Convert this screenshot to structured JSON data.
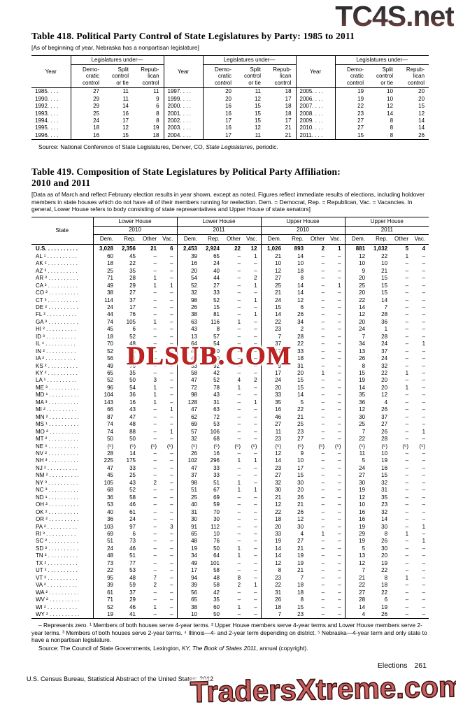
{
  "watermarks": {
    "top_right": "TC4S.net",
    "middle": "DLSUB.COM",
    "bottom_right": "TradersXtreme.com"
  },
  "table418": {
    "title": "Table 418. Political Party Control of State Legislatures by Party: 1985 to 2011",
    "note": "[As of beginning of year. Nebraska has a nonpartisan legislature]",
    "labels": {
      "year": "Year",
      "span": "Legislatures under—",
      "dem": "Demo-\ncratic\ncontrol",
      "split": "Split\ncontrol\nor tie",
      "rep": "Repub-\nlican\ncontrol"
    },
    "leader": ". . . .",
    "rows": [
      [
        "1985",
        "27",
        "11",
        "11",
        "1997",
        "20",
        "11",
        "18",
        "2005",
        "19",
        "10",
        "20"
      ],
      [
        "1990",
        "29",
        "11",
        "9",
        "1999",
        "20",
        "12",
        "17",
        "2006",
        "19",
        "10",
        "20"
      ],
      [
        "1992",
        "29",
        "14",
        "6",
        "2000",
        "16",
        "15",
        "18",
        "2007",
        "22",
        "12",
        "15"
      ],
      [
        "1993",
        "25",
        "16",
        "8",
        "2001",
        "16",
        "15",
        "18",
        "2008",
        "23",
        "14",
        "12"
      ],
      [
        "1994",
        "24",
        "17",
        "8",
        "2002",
        "17",
        "15",
        "17",
        "2009",
        "27",
        "8",
        "14"
      ],
      [
        "1995",
        "18",
        "12",
        "19",
        "2003",
        "16",
        "12",
        "21",
        "2010",
        "27",
        "8",
        "14"
      ],
      [
        "1996",
        "16",
        "15",
        "18",
        "2004",
        "17",
        "11",
        "21",
        "2011",
        "15",
        "8",
        "26"
      ]
    ],
    "source": {
      "prefix": "Source: National Conference of State Legislatures, Denver, CO, ",
      "italic": "State Legislatures",
      "suffix": ", periodic."
    }
  },
  "table419": {
    "title": "Table 419. Composition of State Legislatures by Political Party Affiliation:\n2010 and 2011",
    "note": "[Data as of March and reflect February election results in year shown, except as noted. Figures reflect immediate results of elections, including holdover members in state houses which do not have all of their members running for reelection. Dem. = Democrat, Rep. = Republican, Vac. = Vacancies. In general, Lower House refers to body consisting of state representatives and Upper House of state senators]",
    "labels": {
      "state": "State"
    },
    "groups": [
      "Lower House",
      "Lower House",
      "Upper House",
      "Upper House"
    ],
    "years": [
      "2010",
      "2011",
      "2010",
      "2011"
    ],
    "subcols": [
      "Dem.",
      "Rep.",
      "Other",
      "Vac."
    ],
    "leader": ". . . . . . . . . .",
    "us": {
      "label": "U.S.",
      "values": [
        "3,028",
        "2,356",
        "21",
        "6",
        "2,453",
        "2,924",
        "22",
        "12",
        "1,026",
        "893",
        "2",
        "1",
        "881",
        "1,032",
        "5",
        "4"
      ]
    },
    "rows": [
      {
        "s": "AL ¹",
        "v": [
          "60",
          "45",
          "–",
          "–",
          "39",
          "65",
          "–",
          "1",
          "21",
          "14",
          "–",
          "–",
          "12",
          "22",
          "1",
          "–"
        ]
      },
      {
        "s": "AK ²",
        "v": [
          "18",
          "22",
          "–",
          "–",
          "16",
          "24",
          "–",
          "–",
          "10",
          "10",
          "–",
          "–",
          "10",
          "10",
          "–",
          "–"
        ]
      },
      {
        "s": "AZ ³",
        "v": [
          "25",
          "35",
          "–",
          "–",
          "20",
          "40",
          "–",
          "–",
          "12",
          "18",
          "–",
          "–",
          "9",
          "21",
          "–",
          "–"
        ]
      },
      {
        "s": "AR ²",
        "v": [
          "71",
          "28",
          "1",
          "–",
          "54",
          "44",
          "–",
          "2",
          "27",
          "8",
          "–",
          "–",
          "20",
          "15",
          "–",
          "–"
        ]
      },
      {
        "s": "CA ²",
        "v": [
          "49",
          "29",
          "1",
          "1",
          "52",
          "27",
          "–",
          "1",
          "25",
          "14",
          "–",
          "1",
          "25",
          "15",
          "–",
          "–"
        ]
      },
      {
        "s": "CO ²",
        "v": [
          "38",
          "27",
          "–",
          "–",
          "32",
          "33",
          "–",
          "–",
          "21",
          "14",
          "–",
          "–",
          "20",
          "15",
          "–",
          "–"
        ]
      },
      {
        "s": "CT ³",
        "v": [
          "114",
          "37",
          "–",
          "–",
          "98",
          "52",
          "–",
          "1",
          "24",
          "12",
          "–",
          "–",
          "22",
          "14",
          "–",
          "–"
        ]
      },
      {
        "s": "DE ²",
        "v": [
          "24",
          "17",
          "–",
          "–",
          "26",
          "15",
          "–",
          "–",
          "15",
          "6",
          "–",
          "–",
          "14",
          "7",
          "–",
          "–"
        ]
      },
      {
        "s": "FL ²",
        "v": [
          "44",
          "76",
          "–",
          "–",
          "38",
          "81",
          "–",
          "1",
          "14",
          "26",
          "–",
          "–",
          "12",
          "28",
          "–",
          "–"
        ]
      },
      {
        "s": "GA ³",
        "v": [
          "74",
          "105",
          "1",
          "–",
          "63",
          "116",
          "1",
          "–",
          "22",
          "34",
          "–",
          "–",
          "20",
          "36",
          "–",
          "–"
        ]
      },
      {
        "s": "HI ²",
        "v": [
          "45",
          "6",
          "–",
          "–",
          "43",
          "8",
          "–",
          "–",
          "23",
          "2",
          "–",
          "–",
          "24",
          "1",
          "–",
          "–"
        ]
      },
      {
        "s": "ID ³",
        "v": [
          "18",
          "52",
          "–",
          "–",
          "13",
          "57",
          "–",
          "–",
          "7",
          "28",
          "–",
          "–",
          "7",
          "28",
          "–",
          "–"
        ]
      },
      {
        "s": "IL ⁴",
        "v": [
          "70",
          "48",
          "–",
          "–",
          "64",
          "54",
          "–",
          "–",
          "37",
          "22",
          "–",
          "–",
          "34",
          "24",
          "–",
          "1"
        ]
      },
      {
        "s": "IN ²",
        "v": [
          "52",
          "48",
          "–",
          "–",
          "40",
          "60",
          "–",
          "–",
          "17",
          "33",
          "–",
          "–",
          "13",
          "37",
          "–",
          "–"
        ]
      },
      {
        "s": "IA ²",
        "v": [
          "56",
          "44",
          "–",
          "–",
          "40",
          "60",
          "–",
          "–",
          "32",
          "18",
          "–",
          "–",
          "26",
          "24",
          "–",
          "–"
        ]
      },
      {
        "s": "KS ²",
        "v": [
          "49",
          "76",
          "–",
          "–",
          "33",
          "92",
          "–",
          "–",
          "9",
          "31",
          "–",
          "–",
          "8",
          "32",
          "–",
          "–"
        ]
      },
      {
        "s": "KY ²",
        "v": [
          "65",
          "35",
          "–",
          "–",
          "58",
          "42",
          "–",
          "–",
          "17",
          "20",
          "1",
          "–",
          "15",
          "22",
          "1",
          "–"
        ]
      },
      {
        "s": "LA ¹",
        "v": [
          "52",
          "50",
          "3",
          "–",
          "47",
          "52",
          "4",
          "2",
          "24",
          "15",
          "–",
          "–",
          "19",
          "20",
          "–",
          "–"
        ]
      },
      {
        "s": "ME ³",
        "v": [
          "96",
          "54",
          "1",
          "–",
          "72",
          "78",
          "1",
          "–",
          "20",
          "15",
          "–",
          "–",
          "14",
          "20",
          "1",
          "–"
        ]
      },
      {
        "s": "MD ¹",
        "v": [
          "104",
          "36",
          "1",
          "–",
          "98",
          "43",
          "–",
          "–",
          "33",
          "14",
          "–",
          "–",
          "35",
          "12",
          "–",
          "–"
        ]
      },
      {
        "s": "MA ³",
        "v": [
          "143",
          "16",
          "1",
          "–",
          "128",
          "31",
          "–",
          "1",
          "35",
          "5",
          "–",
          "–",
          "36",
          "4",
          "–",
          "–"
        ]
      },
      {
        "s": "MI ²",
        "v": [
          "66",
          "43",
          "–",
          "1",
          "47",
          "63",
          "–",
          "–",
          "16",
          "22",
          "–",
          "–",
          "12",
          "26",
          "–",
          "–"
        ]
      },
      {
        "s": "MN ²",
        "v": [
          "87",
          "47",
          "–",
          "–",
          "62",
          "72",
          "–",
          "–",
          "46",
          "21",
          "–",
          "–",
          "30",
          "37",
          "–",
          "–"
        ]
      },
      {
        "s": "MS ¹",
        "v": [
          "74",
          "48",
          "–",
          "–",
          "69",
          "53",
          "–",
          "–",
          "27",
          "25",
          "–",
          "–",
          "25",
          "27",
          "–",
          "–"
        ]
      },
      {
        "s": "MO ²",
        "v": [
          "74",
          "88",
          "–",
          "1",
          "57",
          "106",
          "–",
          "–",
          "11",
          "23",
          "–",
          "–",
          "7",
          "26",
          "–",
          "1"
        ]
      },
      {
        "s": "MT ²",
        "v": [
          "50",
          "50",
          "–",
          "–",
          "32",
          "68",
          "–",
          "–",
          "23",
          "27",
          "–",
          "–",
          "22",
          "28",
          "–",
          "–"
        ]
      },
      {
        "s": "NE ⁵",
        "v": [
          "(⁵)",
          "(⁵)",
          "(⁵)",
          "(⁵)",
          "(⁵)",
          "(⁵)",
          "(⁵)",
          "(⁵)",
          "(⁵)",
          "(⁵)",
          "(⁵)",
          "(⁵)",
          "(⁵)",
          "(⁵)",
          "(⁵)",
          "(⁵)"
        ]
      },
      {
        "s": "NV ²",
        "v": [
          "28",
          "14",
          "–",
          "–",
          "26",
          "16",
          "–",
          "–",
          "12",
          "9",
          "–",
          "–",
          "11",
          "10",
          "–",
          "–"
        ]
      },
      {
        "s": "NH ³",
        "v": [
          "225",
          "175",
          "–",
          "–",
          "102",
          "296",
          "1",
          "1",
          "14",
          "10",
          "–",
          "–",
          "5",
          "19",
          "–",
          "–"
        ]
      },
      {
        "s": "NJ ²",
        "v": [
          "47",
          "33",
          "–",
          "–",
          "47",
          "33",
          "–",
          "–",
          "23",
          "17",
          "–",
          "–",
          "24",
          "16",
          "–",
          "–"
        ]
      },
      {
        "s": "NM ²",
        "v": [
          "45",
          "25",
          "–",
          "–",
          "37",
          "33",
          "–",
          "–",
          "27",
          "15",
          "–",
          "–",
          "27",
          "15",
          "–",
          "–"
        ]
      },
      {
        "s": "NY ³",
        "v": [
          "105",
          "43",
          "2",
          "–",
          "98",
          "51",
          "1",
          "–",
          "32",
          "30",
          "–",
          "–",
          "30",
          "32",
          "–",
          "–"
        ]
      },
      {
        "s": "NC ³",
        "v": [
          "68",
          "52",
          "–",
          "–",
          "51",
          "67",
          "1",
          "1",
          "30",
          "20",
          "–",
          "–",
          "19",
          "31",
          "–",
          "–"
        ]
      },
      {
        "s": "ND ¹",
        "v": [
          "36",
          "58",
          "–",
          "–",
          "25",
          "69",
          "–",
          "–",
          "21",
          "26",
          "–",
          "–",
          "12",
          "35",
          "–",
          "–"
        ]
      },
      {
        "s": "OH ²",
        "v": [
          "53",
          "46",
          "–",
          "–",
          "40",
          "59",
          "–",
          "–",
          "12",
          "21",
          "–",
          "–",
          "10",
          "23",
          "–",
          "–"
        ]
      },
      {
        "s": "OK ²",
        "v": [
          "40",
          "61",
          "–",
          "–",
          "31",
          "70",
          "–",
          "–",
          "22",
          "26",
          "–",
          "–",
          "16",
          "32",
          "–",
          "–"
        ]
      },
      {
        "s": "OR ²",
        "v": [
          "36",
          "24",
          "–",
          "–",
          "30",
          "30",
          "–",
          "–",
          "18",
          "12",
          "–",
          "–",
          "16",
          "14",
          "–",
          "–"
        ]
      },
      {
        "s": "PA ²",
        "v": [
          "103",
          "97",
          "–",
          "3",
          "91",
          "112",
          "–",
          "–",
          "20",
          "30",
          "–",
          "–",
          "19",
          "30",
          "–",
          "1"
        ]
      },
      {
        "s": "RI ³",
        "v": [
          "69",
          "6",
          "–",
          "–",
          "65",
          "10",
          "–",
          "–",
          "33",
          "4",
          "1",
          "–",
          "29",
          "8",
          "1",
          "–"
        ]
      },
      {
        "s": "SC ²",
        "v": [
          "51",
          "73",
          "–",
          "–",
          "48",
          "76",
          "–",
          "–",
          "19",
          "27",
          "–",
          "–",
          "19",
          "26",
          "–",
          "1"
        ]
      },
      {
        "s": "SD ³",
        "v": [
          "24",
          "46",
          "–",
          "–",
          "19",
          "50",
          "1",
          "–",
          "14",
          "21",
          "–",
          "–",
          "5",
          "30",
          "–",
          "–"
        ]
      },
      {
        "s": "TN ²",
        "v": [
          "48",
          "51",
          "–",
          "–",
          "34",
          "64",
          "1",
          "–",
          "14",
          "19",
          "–",
          "–",
          "13",
          "20",
          "–",
          "–"
        ]
      },
      {
        "s": "TX ²",
        "v": [
          "73",
          "77",
          "–",
          "–",
          "49",
          "101",
          "–",
          "–",
          "12",
          "19",
          "–",
          "–",
          "12",
          "19",
          "–",
          "–"
        ]
      },
      {
        "s": "UT ²",
        "v": [
          "22",
          "53",
          "–",
          "–",
          "17",
          "58",
          "–",
          "–",
          "8",
          "21",
          "–",
          "–",
          "7",
          "22",
          "–",
          "–"
        ]
      },
      {
        "s": "VT ³",
        "v": [
          "95",
          "48",
          "7",
          "–",
          "94",
          "48",
          "8",
          "–",
          "23",
          "7",
          "–",
          "–",
          "21",
          "8",
          "1",
          "–"
        ]
      },
      {
        "s": "VA ²",
        "v": [
          "39",
          "59",
          "2",
          "–",
          "39",
          "58",
          "2",
          "1",
          "22",
          "18",
          "–",
          "–",
          "22",
          "18",
          "–",
          "–"
        ]
      },
      {
        "s": "WA ²",
        "v": [
          "61",
          "37",
          "–",
          "–",
          "56",
          "42",
          "–",
          "–",
          "31",
          "18",
          "–",
          "–",
          "27",
          "22",
          "–",
          "–"
        ]
      },
      {
        "s": "WV ²",
        "v": [
          "71",
          "29",
          "–",
          "–",
          "65",
          "35",
          "–",
          "–",
          "26",
          "8",
          "–",
          "–",
          "28",
          "6",
          "–",
          "–"
        ]
      },
      {
        "s": "WI ²",
        "v": [
          "52",
          "46",
          "1",
          "–",
          "38",
          "60",
          "1",
          "–",
          "18",
          "15",
          "–",
          "–",
          "14",
          "19",
          "–",
          "–"
        ]
      },
      {
        "s": "WY ²",
        "v": [
          "19",
          "41",
          "–",
          "–",
          "10",
          "50",
          "–",
          "–",
          "7",
          "23",
          "–",
          "–",
          "4",
          "26",
          "–",
          "–"
        ]
      }
    ],
    "footnotes": "– Represents zero. ¹ Members of both houses serve 4-year terms. ² Upper House members serve 4-year terms and Lower House members serve 2-year terms. ³ Members of both houses serve 2-year terms. ⁴ Illinois—4- and 2-year term depending on district. ⁵ Nebraska—4-year term and only state to have a nonpartisan legislature.",
    "source": {
      "prefix": "Source: The Council of State Governments, Lexington, KY, ",
      "italic": "The Book of States 2011",
      "suffix": ", annual (copyright)."
    }
  },
  "footer": {
    "section": "Elections",
    "page_number": "261",
    "census_line": "U.S. Census Bureau, Statistical Abstract of the United States: 2012"
  }
}
